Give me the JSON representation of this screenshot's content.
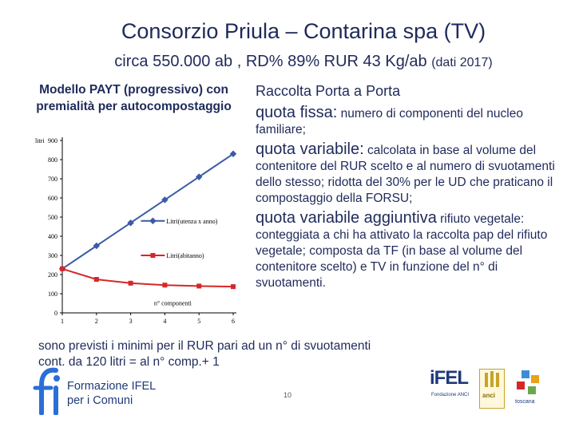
{
  "header": {
    "title": "Consorzio Priula – Contarina spa (TV)",
    "subtitle_main": "circa 550.000 ab , RD% 89% RUR 43 Kg/ab",
    "subtitle_small": "(dati 2017)"
  },
  "chart_heading": {
    "line1": "Modello PAYT (progressivo) con",
    "line2": "premialità per autocompostaggio"
  },
  "chart_data": {
    "type": "line",
    "ylabel": "litri",
    "xlabel": "n° componenti",
    "x": [
      1,
      2,
      3,
      4,
      5,
      6
    ],
    "ylim": [
      0,
      900
    ],
    "yticks": [
      0,
      100,
      200,
      300,
      400,
      500,
      600,
      700,
      800,
      900
    ],
    "series": [
      {
        "name": "Litri(utenza x anno)",
        "values": [
          230,
          350,
          470,
          590,
          710,
          830
        ],
        "color": "#3b5ba5"
      },
      {
        "name": "Litri(abitanno)",
        "values": [
          230,
          175,
          155,
          145,
          140,
          137
        ],
        "color": "#d62728"
      }
    ]
  },
  "right": {
    "heading": "Raccolta Porta a Porta",
    "fixed_label": "quota fissa:",
    "fixed_text": "numero di componenti del nucleo familiare;",
    "variable_label": "quota variabile:",
    "variable_text": "calcolata in base al volume del contenitore del RUR scelto e al numero di svuotamenti dello stesso; ridotta del 30% per le UD che praticano il compostaggio della FORSU;",
    "additional_label": "quota variabile aggiuntiva",
    "additional_text_small": "rifiuto",
    "additional_text": "vegetale: conteggiata a chi ha attivato la raccolta pap del rifiuto vegetale; composta da TF (in base al volume del contenitore scelto) e TV in funzione del n° di svuotamenti."
  },
  "bottom_note": "sono previsti i minimi per il RUR pari ad un n° di svuotamenti cont. da 120 litri = al n° comp.+ 1",
  "footer": {
    "logo_left_line1": "Formazione IFEL",
    "logo_left_line2": "per i Comuni",
    "page_number": "10",
    "ifel_name": "iFEL",
    "ifel_sub": "Fondazione ANCI",
    "anci_text": "anci",
    "toscana_text": "toscana"
  }
}
